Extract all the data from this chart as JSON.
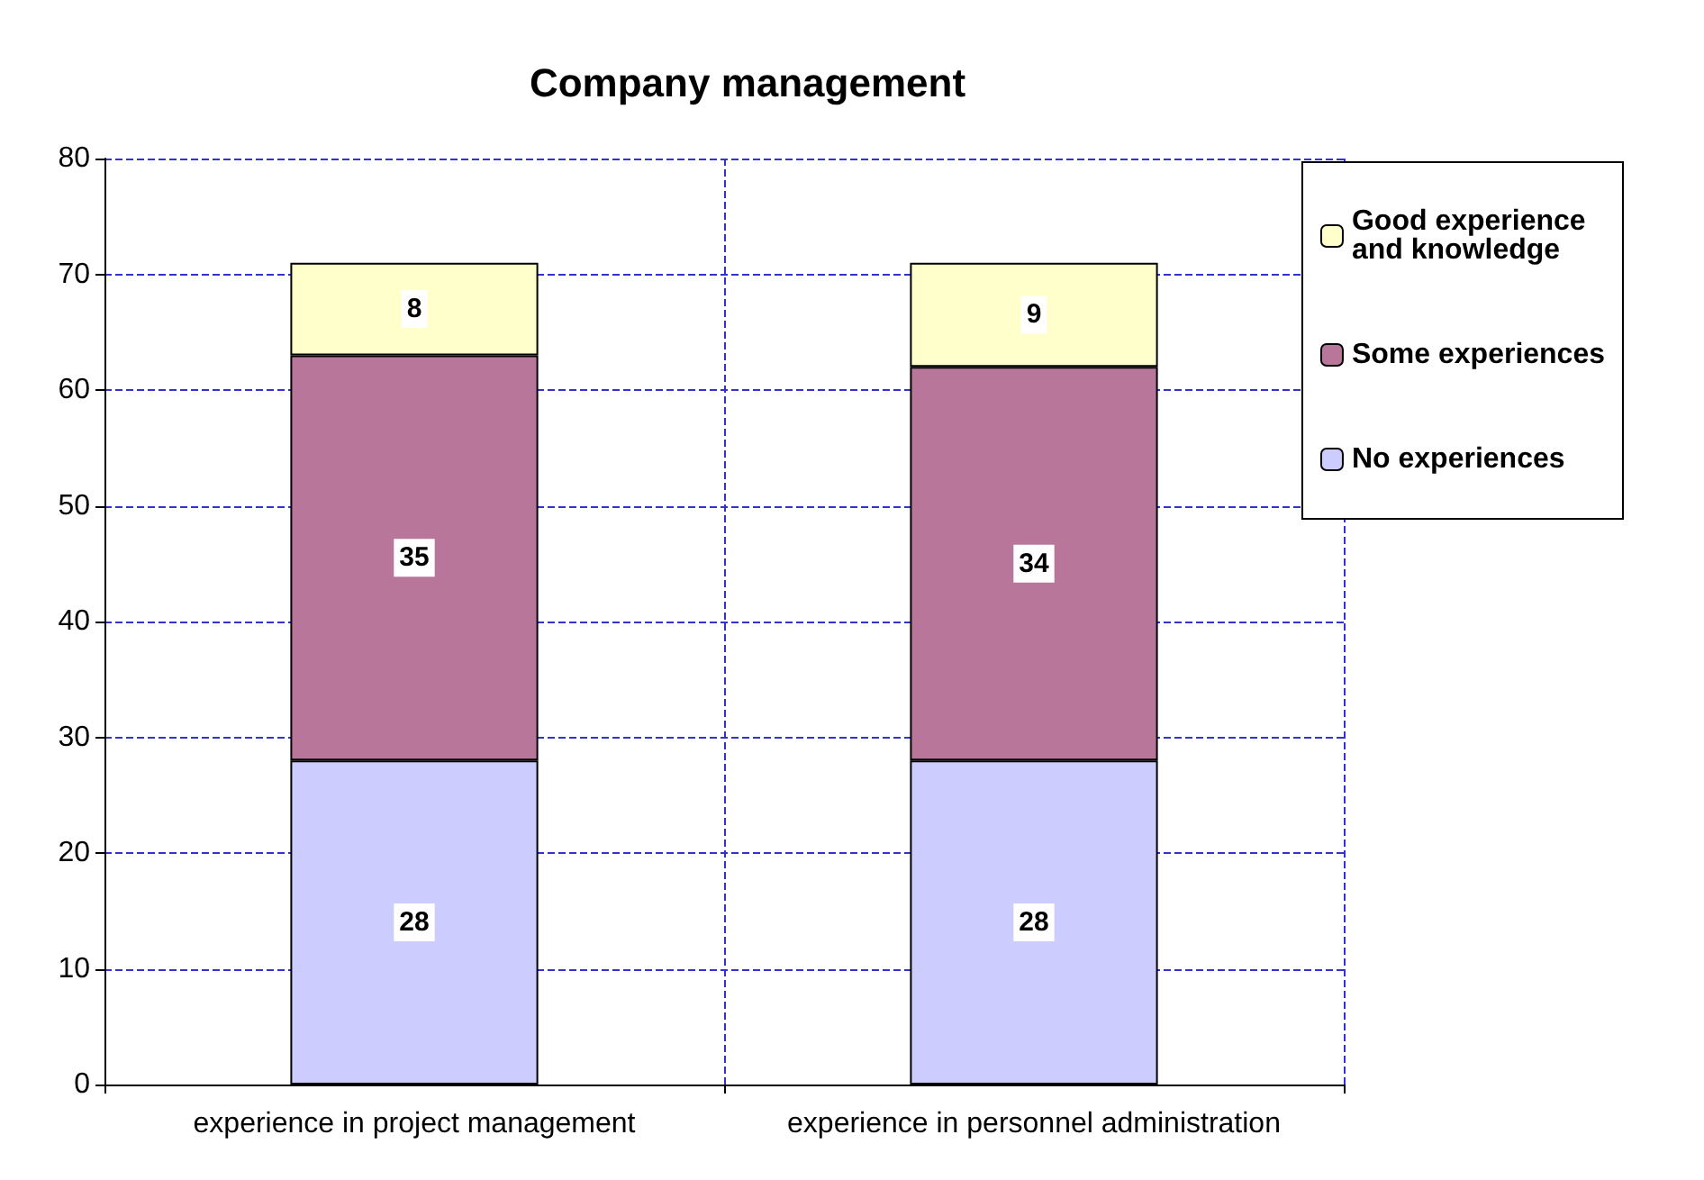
{
  "chart_data": {
    "type": "bar",
    "title": "Company management",
    "categories": [
      "experience in project management",
      "experience in personnel administration"
    ],
    "stacked": true,
    "series": [
      {
        "name": "No experiences",
        "color": "#ccccff",
        "values": [
          28,
          28
        ]
      },
      {
        "name": "Some experiences",
        "color": "#b8779a",
        "values": [
          35,
          34
        ]
      },
      {
        "name": "Good experience and knowledge",
        "color": "#ffffcc",
        "values": [
          8,
          9
        ]
      }
    ],
    "ylim": [
      0,
      80
    ],
    "yticks": [
      0,
      10,
      20,
      30,
      40,
      50,
      60,
      70,
      80
    ],
    "grid": true,
    "legend": "top right",
    "data_labels": true
  }
}
